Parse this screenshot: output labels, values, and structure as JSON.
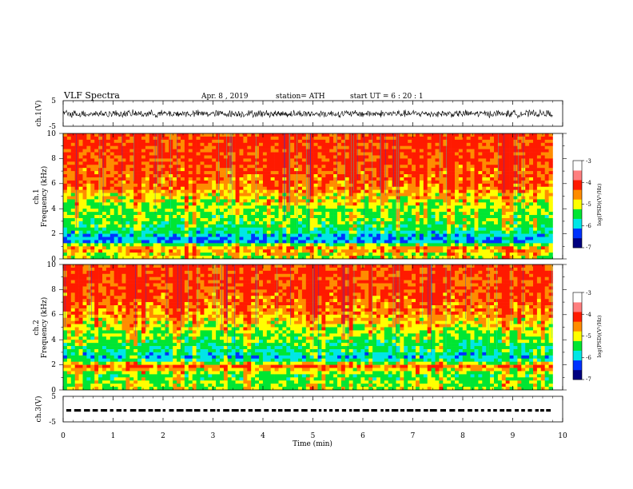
{
  "header": {
    "title": "VLF  Spectra",
    "date": "Apr. 8  , 2019",
    "station": "station= ATH",
    "start": "start  UT  =   6  : 20 : 1"
  },
  "chart_data": [
    {
      "type": "line",
      "panel": "ch1-waveform",
      "ylabel": "ch.1(V)",
      "ylim": [
        -5,
        5
      ],
      "yticks": [
        "5",
        "-5"
      ],
      "xlim": [
        0,
        10
      ],
      "x_end": 9.8,
      "y_range_approx": [
        -1.8,
        1.6
      ]
    },
    {
      "type": "heatmap",
      "panel": "ch1-spectrogram",
      "ylabel_top": "ch.1",
      "ylabel": "Frequency  (kHz)",
      "ylim": [
        0,
        10
      ],
      "yticks": [
        "10",
        "8",
        "6",
        "4",
        "2",
        "0"
      ],
      "xlim": [
        0,
        10
      ],
      "x_end": 9.8,
      "value_label": "log(PSD)(V²/Hz)",
      "value_range": [
        -7,
        -3
      ],
      "bands_kHz_logPSD": [
        [
          0.3,
          -4.6
        ],
        [
          0.7,
          -4.2
        ],
        [
          1.0,
          -4.4
        ],
        [
          1.4,
          -5.9
        ],
        [
          1.8,
          -5.7
        ],
        [
          2.3,
          -5.2
        ],
        [
          3.0,
          -4.9
        ],
        [
          4.0,
          -4.8
        ],
        [
          5.0,
          -4.4
        ],
        [
          6.0,
          -4.0
        ],
        [
          8.0,
          -3.8
        ],
        [
          10.0,
          -3.8
        ]
      ]
    },
    {
      "type": "heatmap",
      "panel": "ch2-spectrogram",
      "ylabel_top": "ch.2",
      "ylabel": "Frequency  (kHz)",
      "ylim": [
        0,
        10
      ],
      "yticks": [
        "10",
        "8",
        "6",
        "4",
        "2",
        "0"
      ],
      "xlim": [
        0,
        10
      ],
      "x_end": 9.8,
      "value_label": "log(PSD)(V²/Hz)",
      "value_range": [
        -7,
        -3
      ],
      "bands_kHz_logPSD": [
        [
          0.5,
          -4.8
        ],
        [
          1.2,
          -5.0
        ],
        [
          1.9,
          -4.0
        ],
        [
          2.5,
          -5.7
        ],
        [
          3.0,
          -5.3
        ],
        [
          4.0,
          -5.0
        ],
        [
          5.0,
          -4.6
        ],
        [
          6.0,
          -4.2
        ],
        [
          8.0,
          -3.8
        ],
        [
          10.0,
          -3.8
        ]
      ]
    },
    {
      "type": "line",
      "panel": "ch3-waveform",
      "ylabel": "ch.3(V)",
      "ylim": [
        -5,
        5
      ],
      "yticks": [
        "5",
        "-5"
      ],
      "xlim": [
        0,
        10
      ],
      "x_end": 9.8,
      "level": -0.5
    }
  ],
  "colorbars": [
    {
      "ticks": [
        "-3",
        "-4",
        "-5",
        "-6",
        "-7"
      ],
      "label": "log(PSD)(V²/Hz)"
    },
    {
      "ticks": [
        "-3",
        "-4",
        "-5",
        "-6",
        "-7"
      ],
      "label": "log(PSD)(V²/Hz)"
    }
  ],
  "xaxis": {
    "label": "Time  (min)",
    "ticks": [
      "0",
      "1",
      "2",
      "3",
      "4",
      "5",
      "6",
      "7",
      "8",
      "9",
      "10"
    ]
  },
  "colors": {
    "red": "#ff1a00",
    "orange": "#ff8c00",
    "yellow": "#ffff00",
    "green": "#00e632",
    "cyan": "#00e6e6",
    "blue": "#0032ff",
    "darkblue": "#000080"
  }
}
